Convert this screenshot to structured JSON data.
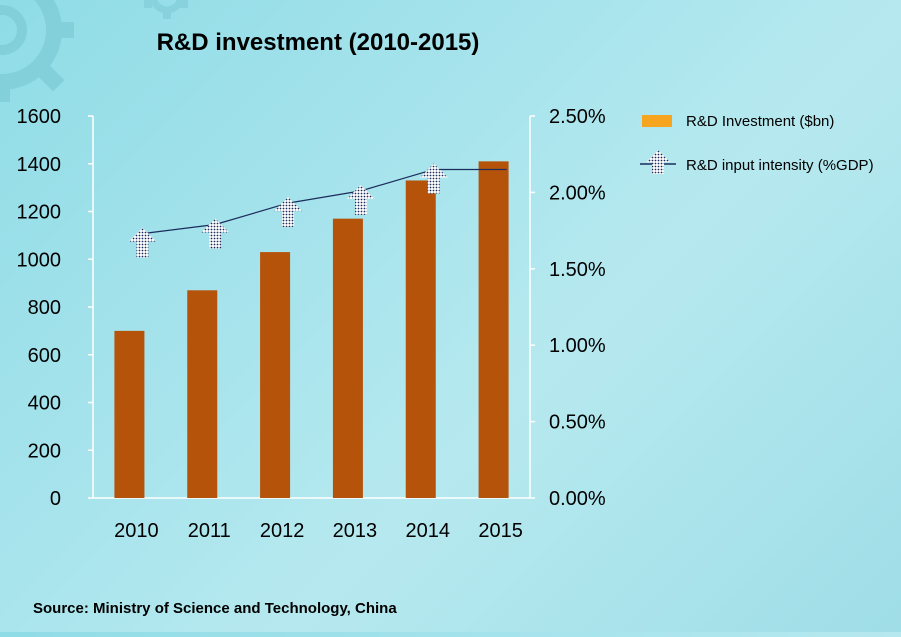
{
  "chart_data": {
    "type": "bar",
    "title": "R&D investment (2010-2015)",
    "categories": [
      "2010",
      "2011",
      "2012",
      "2013",
      "2014",
      "2015"
    ],
    "series": [
      {
        "name": "R&D Investment ($bn)",
        "type": "bar",
        "axis": "left",
        "color": "#b5530a",
        "values": [
          700,
          870,
          1030,
          1170,
          1330,
          1410
        ]
      },
      {
        "name": "R&D input intensity (%GDP)",
        "type": "line",
        "axis": "right",
        "color": "#1c2c5c",
        "values": [
          1.73,
          1.79,
          1.93,
          2.01,
          2.15,
          2.15
        ]
      }
    ],
    "y_left": {
      "min": 0,
      "max": 1600,
      "ticks": [
        "0",
        "200",
        "400",
        "600",
        "800",
        "1000",
        "1200",
        "1400",
        "1600"
      ]
    },
    "y_right": {
      "min": 0,
      "max": 2.5,
      "ticks": [
        "0.00%",
        "0.50%",
        "1.00%",
        "1.50%",
        "2.00%",
        "2.50%"
      ]
    },
    "legend": {
      "placement": "right",
      "bar_swatch_color": "#f7a51f",
      "entries": [
        "R&D Investment ($bn)",
        "R&D input intensity (%GDP)"
      ]
    },
    "grid": false
  },
  "source": "Source: Ministry of Science and Technology, China",
  "colors": {
    "background": "#a6e3ec",
    "axis": "#ffffff",
    "gear": "#7ecbd6"
  },
  "icons": {
    "decoration": "gear-icon",
    "line_marker": "arrow-up-marker-icon"
  }
}
